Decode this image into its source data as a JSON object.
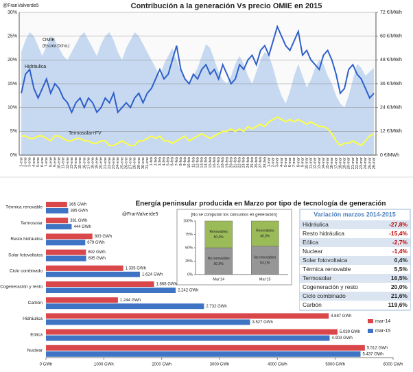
{
  "chart_data": [
    {
      "type": "line",
      "title": "Contribución a la generación Vs precio OMIE en 2015",
      "annotations": [
        "@FranValverde5",
        "(Escala Dcha.)"
      ],
      "categories": [
        "1-ene",
        "2-ene",
        "3-ene",
        "4-ene",
        "5-ene",
        "6-ene",
        "7-ene",
        "8-ene",
        "9-ene",
        "10-ene",
        "11-ene",
        "12-ene",
        "13-ene",
        "14-ene",
        "15-ene",
        "16-ene",
        "17-ene",
        "18-ene",
        "19-ene",
        "20-ene",
        "21-ene",
        "22-ene",
        "23-ene",
        "24-ene",
        "25-ene",
        "26-ene",
        "27-ene",
        "28-ene",
        "29-ene",
        "30-ene",
        "31-ene",
        "1-feb",
        "2-feb",
        "3-feb",
        "4-feb",
        "5-feb",
        "6-feb",
        "7-feb",
        "8-feb",
        "9-feb",
        "10-feb",
        "11-feb",
        "12-feb",
        "13-feb",
        "14-feb",
        "15-feb",
        "16-feb",
        "17-feb",
        "18-feb",
        "19-feb",
        "20-feb",
        "21-feb",
        "22-feb",
        "23-feb",
        "24-feb",
        "25-feb",
        "26-feb",
        "27-feb",
        "28-feb",
        "1-mar",
        "2-mar",
        "3-mar",
        "4-mar",
        "5-mar",
        "6-mar",
        "7-mar",
        "8-mar",
        "9-mar",
        "10-mar",
        "11-mar",
        "12-mar",
        "13-mar",
        "14-mar",
        "15-mar",
        "16-mar",
        "17-mar",
        "18-mar",
        "19-mar",
        "20-mar",
        "21-mar",
        "22-mar",
        "23-mar",
        "24-mar",
        "25-mar",
        "26-mar"
      ],
      "series": [
        {
          "name": "OMIE",
          "type": "area",
          "axis": "y2",
          "color": "#c6d9f1",
          "values": [
            52,
            58,
            62,
            60,
            55,
            50,
            55,
            60,
            58,
            54,
            50,
            48,
            52,
            56,
            60,
            62,
            58,
            54,
            50,
            56,
            60,
            62,
            58,
            52,
            48,
            54,
            58,
            62,
            60,
            56,
            52,
            48,
            44,
            40,
            46,
            50,
            54,
            48,
            42,
            38,
            36,
            40,
            44,
            50,
            56,
            54,
            48,
            42,
            38,
            36,
            40,
            46,
            50,
            46,
            40,
            36,
            42,
            48,
            52,
            50,
            44,
            36,
            30,
            26,
            32,
            40,
            46,
            40,
            34,
            38,
            44,
            48,
            46,
            40,
            36,
            30,
            26,
            24,
            30,
            38,
            46,
            44,
            40,
            42,
            44
          ]
        },
        {
          "name": "Hidráulica",
          "color": "#2e5fc9",
          "values": [
            13,
            17,
            18,
            14,
            12,
            14,
            16,
            13,
            15,
            14,
            12,
            11,
            9,
            11,
            12,
            10,
            12,
            11,
            9,
            10,
            12,
            11,
            13,
            9,
            10,
            11,
            10,
            12,
            13,
            11,
            13,
            14,
            16,
            18,
            16,
            17,
            20,
            23,
            18,
            16,
            15,
            17,
            16,
            18,
            19,
            17,
            18,
            16,
            19,
            17,
            15,
            16,
            19,
            18,
            20,
            21,
            19,
            22,
            23,
            21,
            24,
            27,
            25,
            23,
            22,
            24,
            26,
            21,
            22,
            20,
            19,
            18,
            21,
            22,
            20,
            17,
            13,
            14,
            18,
            19,
            17,
            16,
            14,
            12,
            13
          ]
        },
        {
          "name": "Termosolar+FV",
          "color": "#ffff40",
          "values": [
            4,
            4,
            3.5,
            3.5,
            4,
            4,
            3.5,
            3,
            4,
            4,
            3.5,
            3,
            3,
            3.5,
            3.5,
            3,
            3,
            2.5,
            2.5,
            3,
            3,
            2,
            2,
            2.5,
            3,
            2.5,
            2,
            2,
            3,
            3,
            3.5,
            4,
            3.5,
            4,
            3,
            3,
            2.5,
            3,
            3.5,
            4,
            3,
            3.5,
            4,
            4.5,
            4,
            3.5,
            4,
            4.5,
            5,
            5,
            5.5,
            5,
            5.5,
            5,
            6,
            5.5,
            6,
            6.5,
            6,
            7,
            7.5,
            8,
            7.5,
            7,
            7.5,
            7,
            7.5,
            7,
            6.5,
            7,
            6.5,
            6,
            6,
            5.5,
            4.5,
            3,
            2,
            2.5,
            2.5,
            3,
            2.5,
            2,
            3,
            4,
            4.5
          ]
        }
      ],
      "ylim": [
        0,
        30
      ],
      "yticks": [
        {
          "value": 0,
          "label": "0%"
        },
        {
          "value": 5,
          "label": "5%"
        },
        {
          "value": 10,
          "label": "10%"
        },
        {
          "value": 15,
          "label": "15%"
        },
        {
          "value": 20,
          "label": "20%"
        },
        {
          "value": 25,
          "label": "25%"
        },
        {
          "value": 30,
          "label": "30%"
        }
      ],
      "y2lim": [
        0,
        72
      ],
      "y2ticks": [
        {
          "value": 0,
          "label": "0 €/MWh"
        },
        {
          "value": 12,
          "label": "12 €/MWh"
        },
        {
          "value": 24,
          "label": "24 €/MWh"
        },
        {
          "value": 36,
          "label": "36 €/MWh"
        },
        {
          "value": 48,
          "label": "48 €/MWh"
        },
        {
          "value": 60,
          "label": "60 €/MWh"
        },
        {
          "value": 72,
          "label": "72 €/MWh"
        }
      ],
      "grid": true
    },
    {
      "type": "hbar",
      "title": "Energía peninsular producida en Marzo por tipo de tecnología de generación",
      "annotation": "@FranValverde5",
      "categories": [
        "Térmica renovable",
        "Termosolar",
        "Resto hidráulica",
        "Solar fotovoltaica",
        "Ciclo combinado",
        "Cogeneración y resto",
        "Carbón",
        "Hidráulica",
        "Eólica",
        "Nuclear"
      ],
      "series": [
        {
          "name": "mar-14",
          "color": "#d9474b",
          "values": [
            365,
            381,
            803,
            692,
            1335,
            1868,
            1244,
            4887,
            5039,
            5512
          ],
          "value_labels": [
            "365 GWh",
            "381 GWh",
            "803 GWh",
            "692 GWh",
            "1.335 GWh",
            "1.868 GWh",
            "1.244 GWh",
            "4.887 GWh",
            "5.039 GWh",
            "5.512 GWh"
          ]
        },
        {
          "name": "mar-15",
          "color": "#3f74c4",
          "values": [
            385,
            444,
            679,
            695,
            1624,
            2242,
            2732,
            3527,
            4903,
            5437
          ],
          "value_labels": [
            "385 GWh",
            "444 GWh",
            "679 GWh",
            "695 GWh",
            "1.624 GWh",
            "2.242 GWh",
            "2.732 GWh",
            "3.527 GWh",
            "4.903 GWh",
            "5.437 GWh"
          ]
        }
      ],
      "xlim": [
        0,
        6000
      ],
      "xticks": [
        {
          "value": 0,
          "label": "0 GWh"
        },
        {
          "value": 1000,
          "label": "1000 GWh"
        },
        {
          "value": 2000,
          "label": "2000 GWh"
        },
        {
          "value": 3000,
          "label": "3000 GWh"
        },
        {
          "value": 4000,
          "label": "4000 GWh"
        },
        {
          "value": 5000,
          "label": "5000 GWh"
        },
        {
          "value": 6000,
          "label": "6000 GWh"
        }
      ],
      "legend": "right"
    },
    {
      "type": "stacked",
      "title": "[No se computan los consumos en generación]",
      "categories": [
        "Mar'14",
        "Mar'15"
      ],
      "series": [
        {
          "name": "No renovables",
          "color": "#969696",
          "values": [
            50,
            53.1
          ],
          "value_labels": [
            "50,0%",
            "53,1%"
          ]
        },
        {
          "name": "Renovables",
          "color": "#9bbb59",
          "values": [
            50,
            46.9
          ],
          "value_labels": [
            "50,0%",
            "46,9%"
          ]
        }
      ],
      "ylim": [
        0,
        100
      ],
      "yticks": [
        {
          "value": 0,
          "label": "0%"
        },
        {
          "value": 25,
          "label": "25%"
        },
        {
          "value": 50,
          "label": "50%"
        },
        {
          "value": 75,
          "label": "75%"
        },
        {
          "value": 100,
          "label": "100%"
        }
      ]
    }
  ],
  "table": {
    "title": "Variación marzos 2014-2015",
    "rows": [
      [
        "Hidráulica",
        "-27,8%"
      ],
      [
        "Resto hidráulica",
        "-15,4%"
      ],
      [
        "Eólica",
        "-2,7%"
      ],
      [
        "Nuclear",
        "-1,4%"
      ],
      [
        "Solar fotovoltaica",
        "0,4%"
      ],
      [
        "Térmica renovable",
        "5,5%"
      ],
      [
        "Termosolar",
        "16,5%"
      ],
      [
        "Cogeneración y resto",
        "20,0%"
      ],
      [
        "Ciclo combinado",
        "21,6%"
      ],
      [
        "Carbón",
        "119,6%"
      ]
    ]
  }
}
